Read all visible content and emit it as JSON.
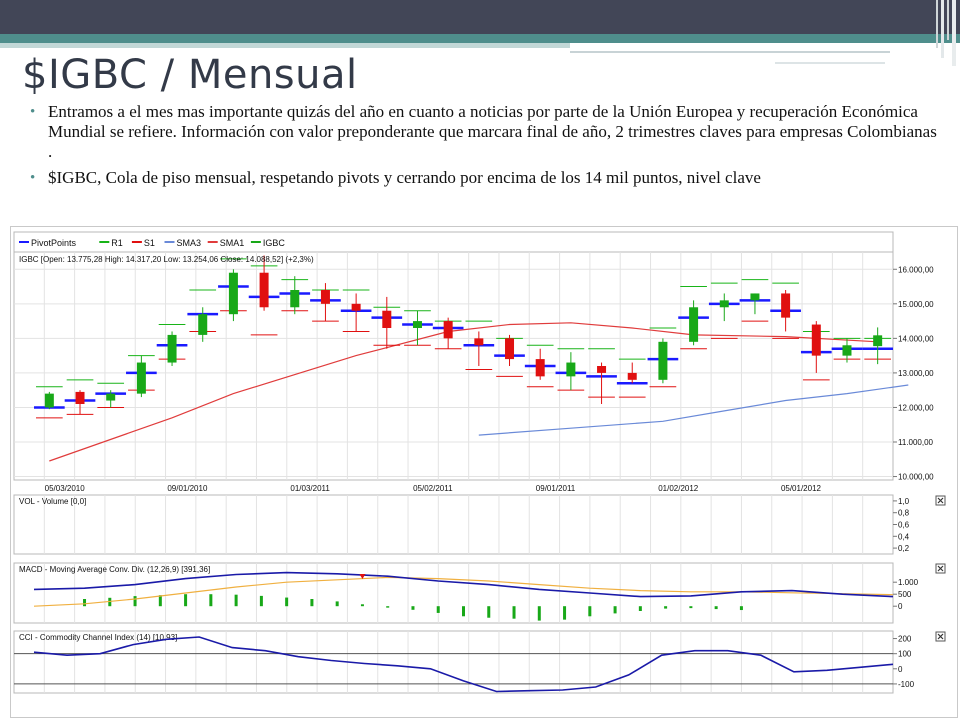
{
  "slide": {
    "title": "$IGBC / Mensual",
    "bullets": [
      "Entramos a el mes mas importante quizás del año en cuanto a noticias por parte de la Unión Europea y recuperación Económica Mundial se refiere. Información con valor preponderante que marcara final de año, 2 trimestres claves para empresas Colombianas .",
      "$IGBC, Cola de piso mensual, respetando pivots y cerrando por encima de los 14 mil puntos, nivel clave"
    ],
    "colors": {
      "topbar": "#424657",
      "accent": "#4f8e8c"
    }
  },
  "chart_data": [
    {
      "type": "candlestick",
      "title": "IGBC [Open: 13.775,28  High: 14.317,20  Low: 13.254,06  Close: 14.088,52] (+2,3%)",
      "legend": [
        {
          "name": "PivotPoints",
          "color": "#1a1aff"
        },
        {
          "name": "R1",
          "color": "#18b418"
        },
        {
          "name": "S1",
          "color": "#e01010"
        },
        {
          "name": "SMA3",
          "color": "#6a8ad8"
        },
        {
          "name": "SMA1",
          "color": "#e03c3c"
        },
        {
          "name": "IGBC",
          "color": "#18a818"
        }
      ],
      "x_tick_labels": [
        "05/03/2010",
        "09/01/2010",
        "01/03/2011",
        "05/02/2011",
        "09/01/2011",
        "01/02/2012",
        "05/01/2012"
      ],
      "y_tick_labels": [
        "16.000,00",
        "15.000,00",
        "14.000,00",
        "13.000,00",
        "12.000,00",
        "11.000,00",
        "10.000,00"
      ],
      "ylim": [
        9900,
        16500
      ],
      "candles": [
        {
          "o": 12000,
          "h": 12450,
          "l": 11950,
          "c": 12400
        },
        {
          "o": 12450,
          "h": 12500,
          "l": 11800,
          "c": 12100
        },
        {
          "o": 12200,
          "h": 12500,
          "l": 12000,
          "c": 12400
        },
        {
          "o": 12400,
          "h": 13500,
          "l": 12300,
          "c": 13300
        },
        {
          "o": 13300,
          "h": 14200,
          "l": 13200,
          "c": 14100
        },
        {
          "o": 14100,
          "h": 14900,
          "l": 13900,
          "c": 14700
        },
        {
          "o": 14700,
          "h": 16000,
          "l": 14500,
          "c": 15900
        },
        {
          "o": 15900,
          "h": 16400,
          "l": 14800,
          "c": 14900
        },
        {
          "o": 14900,
          "h": 15800,
          "l": 14700,
          "c": 15400
        },
        {
          "o": 15400,
          "h": 15600,
          "l": 14500,
          "c": 15000
        },
        {
          "o": 15000,
          "h": 15300,
          "l": 14200,
          "c": 14800
        },
        {
          "o": 14800,
          "h": 15200,
          "l": 13700,
          "c": 14300
        },
        {
          "o": 14300,
          "h": 14800,
          "l": 13800,
          "c": 14500
        },
        {
          "o": 14500,
          "h": 14600,
          "l": 13700,
          "c": 14000
        },
        {
          "o": 14000,
          "h": 14200,
          "l": 13200,
          "c": 13800
        },
        {
          "o": 14000,
          "h": 14100,
          "l": 13200,
          "c": 13400
        },
        {
          "o": 13400,
          "h": 13700,
          "l": 12800,
          "c": 12900
        },
        {
          "o": 12900,
          "h": 13600,
          "l": 12500,
          "c": 13300
        },
        {
          "o": 13200,
          "h": 13300,
          "l": 12100,
          "c": 13000
        },
        {
          "o": 13000,
          "h": 13300,
          "l": 12700,
          "c": 12800
        },
        {
          "o": 12800,
          "h": 14000,
          "l": 12700,
          "c": 13900
        },
        {
          "o": 13900,
          "h": 15100,
          "l": 13800,
          "c": 14900
        },
        {
          "o": 14900,
          "h": 15300,
          "l": 14500,
          "c": 15100
        },
        {
          "o": 15100,
          "h": 15300,
          "l": 14700,
          "c": 15300
        },
        {
          "o": 15300,
          "h": 15400,
          "l": 14200,
          "c": 14600
        },
        {
          "o": 14400,
          "h": 14500,
          "l": 13000,
          "c": 13500
        },
        {
          "o": 13500,
          "h": 14000,
          "l": 13300,
          "c": 13800
        },
        {
          "o": 13775,
          "h": 14317,
          "l": 13254,
          "c": 14088
        }
      ],
      "pivot": [
        12000,
        12200,
        12400,
        13000,
        13800,
        14700,
        15500,
        15200,
        15300,
        15100,
        14800,
        14600,
        14400,
        14300,
        13800,
        13500,
        13200,
        13000,
        12900,
        12700,
        13400,
        14600,
        15000,
        15100,
        14800,
        13600,
        13700,
        13700
      ],
      "r1": [
        12600,
        12800,
        12700,
        13500,
        14400,
        15400,
        16300,
        16100,
        15700,
        15400,
        15400,
        14900,
        14800,
        14500,
        14500,
        14000,
        13800,
        13700,
        13700,
        13400,
        14300,
        15500,
        15600,
        15700,
        15600,
        14200,
        14000,
        14000
      ],
      "s1": [
        11700,
        11800,
        12000,
        12500,
        13400,
        14200,
        14800,
        14100,
        14800,
        14500,
        14200,
        13800,
        13800,
        13700,
        13100,
        12900,
        12600,
        12500,
        12300,
        12300,
        12600,
        13700,
        14000,
        14500,
        14000,
        12800,
        13400,
        13400
      ],
      "sma1": [
        [
          0,
          10450
        ],
        [
          4,
          11700
        ],
        [
          6,
          12400
        ],
        [
          10,
          13500
        ],
        [
          13,
          14200
        ],
        [
          15,
          14400
        ],
        [
          17,
          14450
        ],
        [
          19,
          14300
        ],
        [
          21,
          14100
        ],
        [
          24,
          14050
        ],
        [
          27,
          13900
        ]
      ],
      "sma3": [
        [
          14,
          11200
        ],
        [
          17,
          11400
        ],
        [
          20,
          11600
        ],
        [
          22,
          11900
        ],
        [
          24,
          12200
        ],
        [
          26,
          12400
        ],
        [
          28,
          12650
        ]
      ]
    },
    {
      "type": "bar",
      "title": "VOL - Volume [0,0]",
      "y_tick_labels": [
        "1,0",
        "0,8",
        "0,6",
        "0,4",
        "0,2"
      ],
      "ylim": [
        0.1,
        1.1
      ],
      "values": []
    },
    {
      "type": "line",
      "title": "MACD - Moving Average Conv. Div. (12,26,9) [391,36]",
      "y_tick_labels": [
        "1.000",
        "500",
        "0"
      ],
      "ylim": [
        -700,
        1800
      ],
      "macd": [
        [
          0,
          700
        ],
        [
          2,
          750
        ],
        [
          4,
          900
        ],
        [
          6,
          1150
        ],
        [
          8,
          1320
        ],
        [
          10,
          1400
        ],
        [
          12,
          1350
        ],
        [
          14,
          1250
        ],
        [
          16,
          1050
        ],
        [
          18,
          900
        ],
        [
          20,
          700
        ],
        [
          22,
          550
        ],
        [
          24,
          400
        ],
        [
          26,
          430
        ],
        [
          28,
          600
        ],
        [
          30,
          650
        ],
        [
          32,
          500
        ],
        [
          34,
          400
        ]
      ],
      "signal": [
        [
          0,
          0
        ],
        [
          2,
          100
        ],
        [
          4,
          300
        ],
        [
          6,
          550
        ],
        [
          8,
          800
        ],
        [
          10,
          1000
        ],
        [
          12,
          1100
        ],
        [
          14,
          1200
        ],
        [
          16,
          1150
        ],
        [
          18,
          1050
        ],
        [
          20,
          900
        ],
        [
          22,
          750
        ],
        [
          24,
          650
        ],
        [
          26,
          600
        ],
        [
          28,
          600
        ],
        [
          30,
          560
        ],
        [
          32,
          520
        ],
        [
          34,
          480
        ]
      ],
      "histogram": [
        [
          2,
          300
        ],
        [
          3,
          350
        ],
        [
          4,
          420
        ],
        [
          5,
          460
        ],
        [
          6,
          500
        ],
        [
          7,
          500
        ],
        [
          8,
          480
        ],
        [
          9,
          430
        ],
        [
          10,
          360
        ],
        [
          11,
          300
        ],
        [
          12,
          200
        ],
        [
          13,
          80
        ],
        [
          14,
          -60
        ],
        [
          15,
          -150
        ],
        [
          16,
          -280
        ],
        [
          17,
          -420
        ],
        [
          18,
          -480
        ],
        [
          19,
          -520
        ],
        [
          20,
          -600
        ],
        [
          21,
          -560
        ],
        [
          22,
          -420
        ],
        [
          23,
          -300
        ],
        [
          24,
          -200
        ],
        [
          25,
          -100
        ],
        [
          26,
          -80
        ],
        [
          27,
          -120
        ],
        [
          28,
          -160
        ]
      ]
    },
    {
      "type": "line",
      "title": "CCI - Commodity Channel Index (14) [10,93]",
      "y_tick_labels": [
        "200",
        "100",
        "0",
        "-100"
      ],
      "ylim": [
        -160,
        250
      ],
      "values": [
        [
          0,
          110
        ],
        [
          1,
          90
        ],
        [
          2,
          100
        ],
        [
          3,
          160
        ],
        [
          4,
          195
        ],
        [
          5,
          210
        ],
        [
          6,
          140
        ],
        [
          7,
          120
        ],
        [
          8,
          80
        ],
        [
          9,
          55
        ],
        [
          10,
          35
        ],
        [
          11,
          20
        ],
        [
          12,
          0
        ],
        [
          13,
          -80
        ],
        [
          14,
          -150
        ],
        [
          15,
          -145
        ],
        [
          16,
          -140
        ],
        [
          17,
          -120
        ],
        [
          18,
          -40
        ],
        [
          19,
          90
        ],
        [
          20,
          120
        ],
        [
          21,
          120
        ],
        [
          22,
          90
        ],
        [
          23,
          -20
        ],
        [
          24,
          -10
        ],
        [
          25,
          10
        ],
        [
          26,
          30
        ]
      ]
    }
  ]
}
